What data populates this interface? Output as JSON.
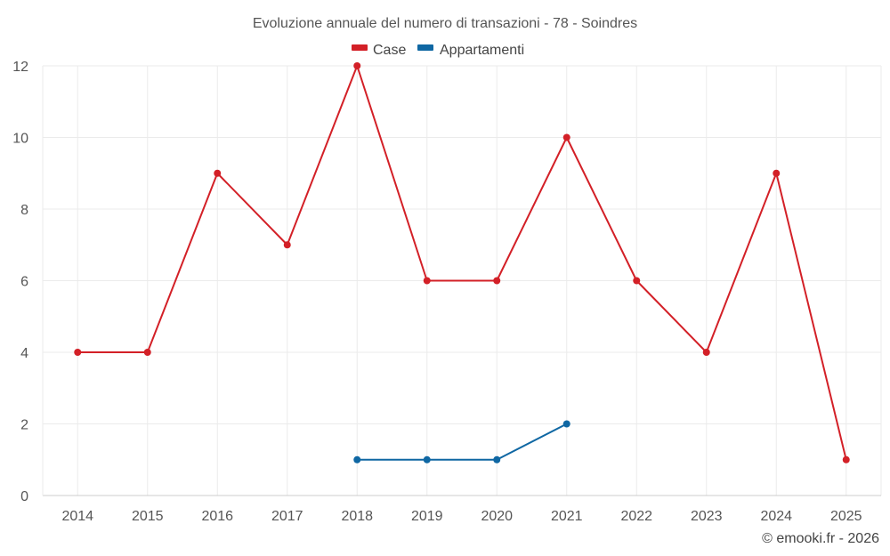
{
  "chart_data": {
    "type": "line",
    "title": "Evoluzione annuale del numero di transazioni - 78 - Soindres",
    "categories": [
      "2014",
      "2015",
      "2016",
      "2017",
      "2018",
      "2019",
      "2020",
      "2021",
      "2022",
      "2023",
      "2024",
      "2025"
    ],
    "ylim": [
      0,
      12
    ],
    "yticks": [
      0,
      2,
      4,
      6,
      8,
      10,
      12
    ],
    "xlabel": "",
    "ylabel": "",
    "grid": true,
    "legend_position": "top-center",
    "series": [
      {
        "name": "Case",
        "color": "#d32027",
        "values": [
          4,
          4,
          9,
          7,
          12,
          6,
          6,
          10,
          6,
          4,
          9,
          1
        ]
      },
      {
        "name": "Appartamenti",
        "color": "#0f67a3",
        "values": [
          null,
          null,
          null,
          null,
          1,
          1,
          1,
          2,
          null,
          null,
          null,
          null
        ]
      }
    ]
  },
  "credits": "© emooki.fr - 2026"
}
